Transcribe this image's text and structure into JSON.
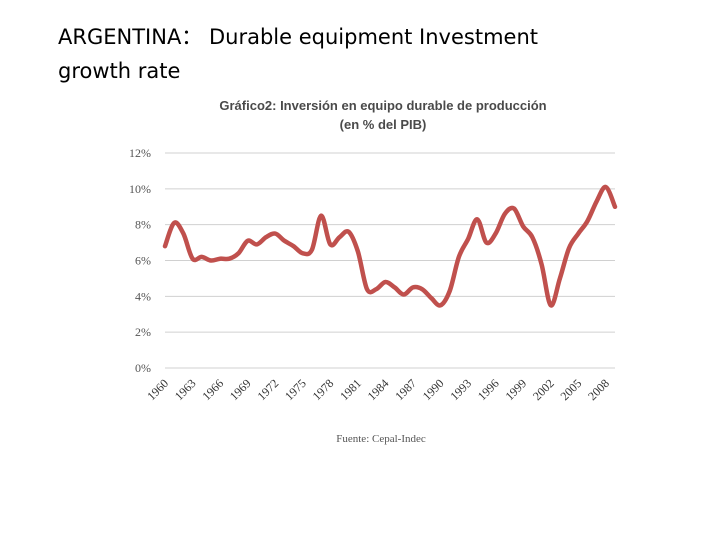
{
  "slide": {
    "title_line1": "ARGENTINA： Durable equipment Investment",
    "title_line2": "growth rate"
  },
  "chart_data": {
    "type": "line",
    "title_line1": "Gráfico2: Inversión en equipo durable de producción",
    "title_line2": "(en % del PIB)",
    "source": "Fuente: Cepal-Indec",
    "xlabel": "",
    "ylabel": "",
    "ylim": [
      0,
      12
    ],
    "yticks": [
      0,
      2,
      4,
      6,
      8,
      10,
      12
    ],
    "ytick_labels": [
      "0%",
      "2%",
      "4%",
      "6%",
      "8%",
      "10%",
      "12%"
    ],
    "xticks": [
      1960,
      1963,
      1966,
      1969,
      1972,
      1975,
      1978,
      1981,
      1984,
      1987,
      1990,
      1993,
      1996,
      1999,
      2002,
      2005,
      2008
    ],
    "xtick_labels": [
      "1960",
      "1963",
      "1966",
      "1969",
      "1972",
      "1975",
      "1978",
      "1981",
      "1984",
      "1987",
      "1990",
      "1993",
      "1996",
      "1999",
      "2002",
      "2005",
      "2008"
    ],
    "grid": true,
    "line_color": "#c0504d",
    "series": [
      {
        "x": [
          1960,
          1961,
          1962,
          1963,
          1964,
          1965,
          1966,
          1967,
          1968,
          1969,
          1970,
          1971,
          1972,
          1973,
          1974,
          1975,
          1976,
          1977,
          1978,
          1979,
          1980,
          1981,
          1982,
          1983,
          1984,
          1985,
          1986,
          1987,
          1988,
          1989,
          1990,
          1991,
          1992,
          1993,
          1994,
          1995,
          1996,
          1997,
          1998,
          1999,
          2000,
          2001,
          2002,
          2003,
          2004,
          2005,
          2006,
          2007,
          2008,
          2009
        ],
        "values": [
          6.8,
          8.1,
          7.5,
          6.1,
          6.2,
          6.0,
          6.1,
          6.1,
          6.4,
          7.1,
          6.9,
          7.3,
          7.5,
          7.1,
          6.8,
          6.4,
          6.6,
          8.5,
          6.9,
          7.3,
          7.6,
          6.5,
          4.4,
          4.4,
          4.8,
          4.5,
          4.1,
          4.5,
          4.4,
          3.9,
          3.5,
          4.3,
          6.2,
          7.2,
          8.3,
          7.0,
          7.5,
          8.6,
          8.9,
          7.9,
          7.3,
          5.8,
          3.5,
          5.0,
          6.7,
          7.5,
          8.2,
          9.3,
          10.1,
          9.0
        ]
      }
    ]
  }
}
